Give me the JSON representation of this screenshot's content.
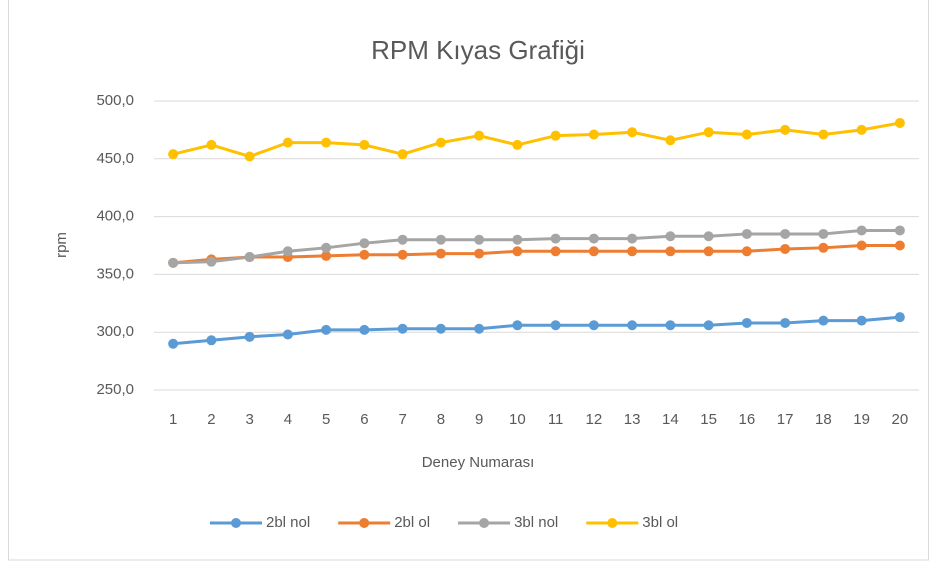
{
  "chart_data": {
    "type": "line",
    "title": "RPM Kıyas Grafiği",
    "x_label": "Deney Numarası",
    "y_label": "rpm",
    "categories": [
      "1",
      "2",
      "3",
      "4",
      "5",
      "6",
      "7",
      "8",
      "9",
      "10",
      "11",
      "12",
      "13",
      "14",
      "15",
      "16",
      "17",
      "18",
      "19",
      "20"
    ],
    "series": [
      {
        "name": "2bl nol",
        "color": "#5b9bd5",
        "values": [
          290,
          293,
          296,
          298,
          302,
          302,
          303,
          303,
          303,
          306,
          306,
          306,
          306,
          306,
          306,
          308,
          308,
          310,
          310,
          313
        ]
      },
      {
        "name": "2bl ol",
        "color": "#ed7d31",
        "values": [
          360,
          363,
          365,
          365,
          366,
          367,
          367,
          368,
          368,
          370,
          370,
          370,
          370,
          370,
          370,
          370,
          372,
          373,
          375,
          375
        ]
      },
      {
        "name": "3bl nol",
        "color": "#a5a5a5",
        "values": [
          360,
          361,
          365,
          370,
          373,
          377,
          380,
          380,
          380,
          380,
          381,
          381,
          381,
          383,
          383,
          385,
          385,
          385,
          388,
          388
        ]
      },
      {
        "name": "3bl ol",
        "color": "#ffc000",
        "values": [
          454,
          462,
          452,
          464,
          464,
          462,
          454,
          464,
          470,
          462,
          470,
          471,
          473,
          466,
          473,
          471,
          475,
          471,
          475,
          481
        ]
      }
    ],
    "ylim": [
      250,
      500
    ],
    "yticks": [
      {
        "value": 250,
        "label": "250,0"
      },
      {
        "value": 300,
        "label": "300,0"
      },
      {
        "value": 350,
        "label": "350,0"
      },
      {
        "value": 400,
        "label": "400,0"
      },
      {
        "value": 450,
        "label": "450,0"
      },
      {
        "value": 500,
        "label": "500,0"
      }
    ],
    "grid": true,
    "legend": "bottom"
  }
}
